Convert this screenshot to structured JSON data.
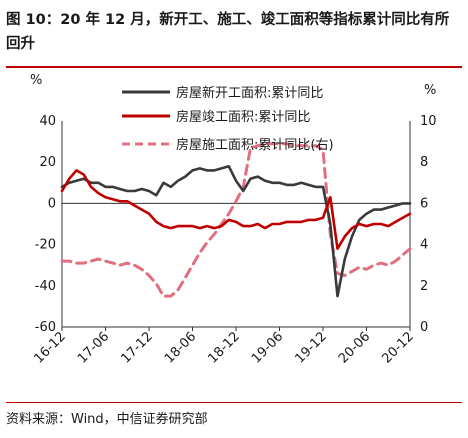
{
  "title": "图 10：20 年 12 月，新开工、施工、竣工面积等指标累计同比有所回升",
  "source": "资料来源：Wind，中信证券研究部",
  "chart_data": {
    "type": "line",
    "y_left_unit": "%",
    "y_right_unit": "%",
    "ylim_left": [
      -60,
      40
    ],
    "yticks_left": [
      -60,
      -40,
      -20,
      0,
      20,
      40
    ],
    "ylim_right": [
      0,
      10
    ],
    "yticks_right": [
      0,
      2,
      4,
      6,
      8,
      10
    ],
    "x_tick_labels": [
      "16-12",
      "17-06",
      "17-12",
      "18-06",
      "18-12",
      "19-06",
      "19-12",
      "20-06",
      "20-12"
    ],
    "x_tick_index": [
      0,
      6,
      12,
      18,
      24,
      30,
      36,
      42,
      48
    ],
    "x_count": 49,
    "legend_position": "top-center",
    "series": [
      {
        "name": "房屋新开工面积:累计同比",
        "axis": "left",
        "color": "#3a3a3a",
        "dash": false,
        "values": [
          8,
          10,
          11,
          12,
          10,
          10,
          8,
          8,
          7,
          6,
          6,
          7,
          6,
          4,
          10,
          8,
          11,
          13,
          16,
          17,
          16,
          16,
          17,
          18,
          11,
          6,
          12,
          13,
          11,
          10,
          10,
          9,
          9,
          10,
          9,
          8,
          8,
          -10,
          -45,
          -27,
          -16,
          -8,
          -5,
          -3,
          -3,
          -2,
          -1,
          0,
          0
        ]
      },
      {
        "name": "房屋竣工面积:累计同比",
        "axis": "left",
        "color": "#c00000",
        "dash": false,
        "values": [
          6,
          12,
          16,
          14,
          8,
          5,
          3,
          2,
          1,
          1,
          -1,
          -3,
          -5,
          -9,
          -11,
          -12,
          -11,
          -11,
          -11,
          -12,
          -11,
          -12,
          -11,
          -8,
          -9,
          -11,
          -11,
          -10,
          -12,
          -10,
          -10,
          -9,
          -9,
          -9,
          -8,
          -8,
          -7,
          3,
          -22,
          -16,
          -12,
          -10,
          -11,
          -10,
          -10,
          -11,
          -9,
          -7,
          -5
        ]
      },
      {
        "name": "房屋施工面积:累计同比(右)",
        "axis": "right",
        "color": "#e07080",
        "dash": true,
        "values": [
          3.2,
          3.2,
          3.1,
          3.1,
          3.2,
          3.3,
          3.2,
          3.1,
          3.0,
          3.1,
          3.0,
          2.8,
          2.5,
          2.1,
          1.5,
          1.5,
          1.8,
          2.4,
          3.0,
          3.6,
          4.1,
          4.5,
          5.0,
          5.5,
          6.1,
          6.8,
          8.7,
          8.8,
          8.9,
          8.9,
          8.9,
          8.9,
          8.8,
          8.8,
          8.8,
          8.8,
          8.6,
          4.5,
          2.6,
          2.5,
          2.7,
          2.9,
          2.8,
          3.0,
          3.1,
          3.0,
          3.2,
          3.5,
          3.8
        ]
      }
    ]
  }
}
